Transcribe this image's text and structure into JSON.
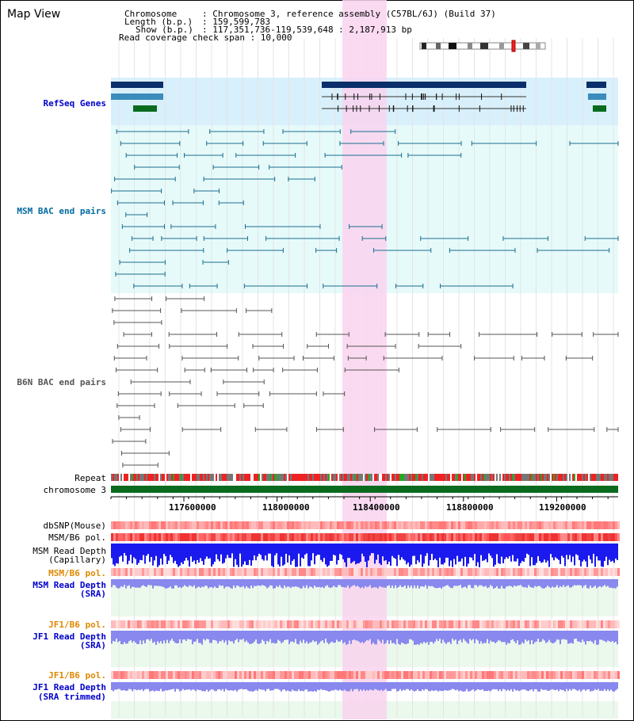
{
  "title": "Map View",
  "info": {
    "chromosome_key": "Chromosome",
    "chromosome_val": ": Chromosome 3, reference assembly (C57BL/6J) (Build 37)",
    "length_key": "Length (b.p.)",
    "length_val": ": 159,599,783",
    "show_key": "Show (b.p.)",
    "show_val": ": 117,351,736-119,539,648 : 2,187,913 bp",
    "coverage": "Read coverage check span : 10,000"
  },
  "tracks": {
    "refseq": "RefSeq Genes",
    "msm_bac": "MSM BAC end pairs",
    "b6n_bac": "B6N BAC end pairs",
    "repeat": "Repeat",
    "chromosome": "chromosome 3",
    "dbsnp": "dbSNP(Mouse)",
    "msm_pol": "MSM/B6 pol.",
    "msm_depth_cap_1": "MSM Read Depth",
    "msm_depth_cap_2": "(Capillary)",
    "msm_pol2": "MSM/B6 pol.",
    "msm_depth_sra_1": "MSM Read Depth",
    "msm_depth_sra_2": "(SRA)",
    "jf1_pol": "JF1/B6 pol.",
    "jf1_depth_1": "JF1 Read Depth",
    "jf1_depth_2": "(SRA)",
    "jf1_pol2": "JF1/B6 pol.",
    "jf1_trim_1": "JF1 Read Depth",
    "jf1_trim_2": "(SRA trimmed)"
  },
  "axis": {
    "ticks": [
      "117600000",
      "118000000",
      "118400000",
      "118800000",
      "119200000"
    ]
  },
  "colors": {
    "highlight": "#f9d3ee",
    "refseq_bg": "#d8f0fb",
    "bac_bg": "#e6fafa",
    "refseq_gene_dark": "#0a2f6b",
    "refseq_gene_mid": "#3b8bbd",
    "refseq_gene_green": "#0a6b1f",
    "msm_pair": "#1a6f8f",
    "b6n_pair": "#555555",
    "chromosome_bar": "#0a6b1f",
    "snp_red": "#ee4444",
    "depth_blue": "#1a1aee",
    "depth_light_blue": "#8888ee"
  }
}
